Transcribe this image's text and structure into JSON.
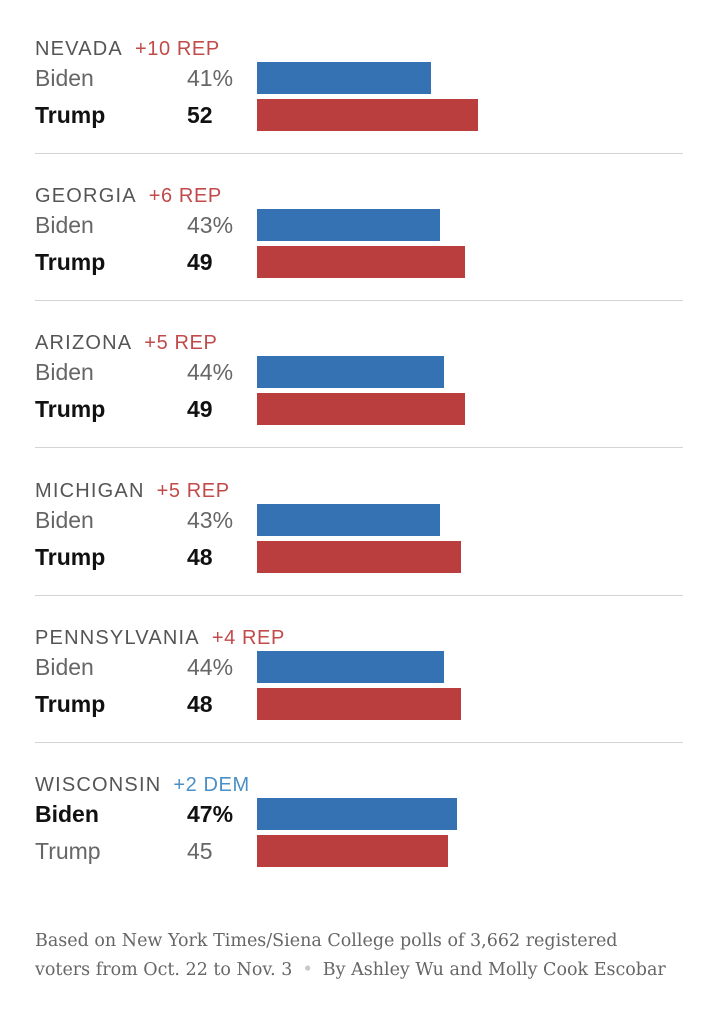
{
  "colors": {
    "dem": "#3572b4",
    "rep": "#ba3e3e",
    "dem_text": "#4a8fc7",
    "rep_text": "#c24a4a"
  },
  "chart_data": {
    "type": "bar",
    "orientation": "horizontal",
    "title": "",
    "xlim": [
      0,
      100
    ],
    "states": [
      {
        "state": "NEVADA",
        "margin": "+10 REP",
        "margin_party": "rep",
        "rows": [
          {
            "candidate": "Biden",
            "label": "41%",
            "value": 41,
            "party": "dem",
            "winner": false
          },
          {
            "candidate": "Trump",
            "label": "52",
            "value": 52,
            "party": "rep",
            "winner": true
          }
        ]
      },
      {
        "state": "GEORGIA",
        "margin": "+6 REP",
        "margin_party": "rep",
        "rows": [
          {
            "candidate": "Biden",
            "label": "43%",
            "value": 43,
            "party": "dem",
            "winner": false
          },
          {
            "candidate": "Trump",
            "label": "49",
            "value": 49,
            "party": "rep",
            "winner": true
          }
        ]
      },
      {
        "state": "ARIZONA",
        "margin": "+5 REP",
        "margin_party": "rep",
        "rows": [
          {
            "candidate": "Biden",
            "label": "44%",
            "value": 44,
            "party": "dem",
            "winner": false
          },
          {
            "candidate": "Trump",
            "label": "49",
            "value": 49,
            "party": "rep",
            "winner": true
          }
        ]
      },
      {
        "state": "MICHIGAN",
        "margin": "+5 REP",
        "margin_party": "rep",
        "rows": [
          {
            "candidate": "Biden",
            "label": "43%",
            "value": 43,
            "party": "dem",
            "winner": false
          },
          {
            "candidate": "Trump",
            "label": "48",
            "value": 48,
            "party": "rep",
            "winner": true
          }
        ]
      },
      {
        "state": "PENNSYLVANIA",
        "margin": "+4 REP",
        "margin_party": "rep",
        "rows": [
          {
            "candidate": "Biden",
            "label": "44%",
            "value": 44,
            "party": "dem",
            "winner": false
          },
          {
            "candidate": "Trump",
            "label": "48",
            "value": 48,
            "party": "rep",
            "winner": true
          }
        ]
      },
      {
        "state": "WISCONSIN",
        "margin": "+2 DEM",
        "margin_party": "dem",
        "rows": [
          {
            "candidate": "Biden",
            "label": "47%",
            "value": 47,
            "party": "dem",
            "winner": true
          },
          {
            "candidate": "Trump",
            "label": "45",
            "value": 45,
            "party": "rep",
            "winner": false
          }
        ]
      }
    ]
  },
  "footer": {
    "source": "Based on New York Times/Siena College polls of 3,662 registered voters from Oct. 22 to Nov. 3",
    "separator": "•",
    "byline": "By Ashley Wu and Molly Cook Escobar"
  }
}
